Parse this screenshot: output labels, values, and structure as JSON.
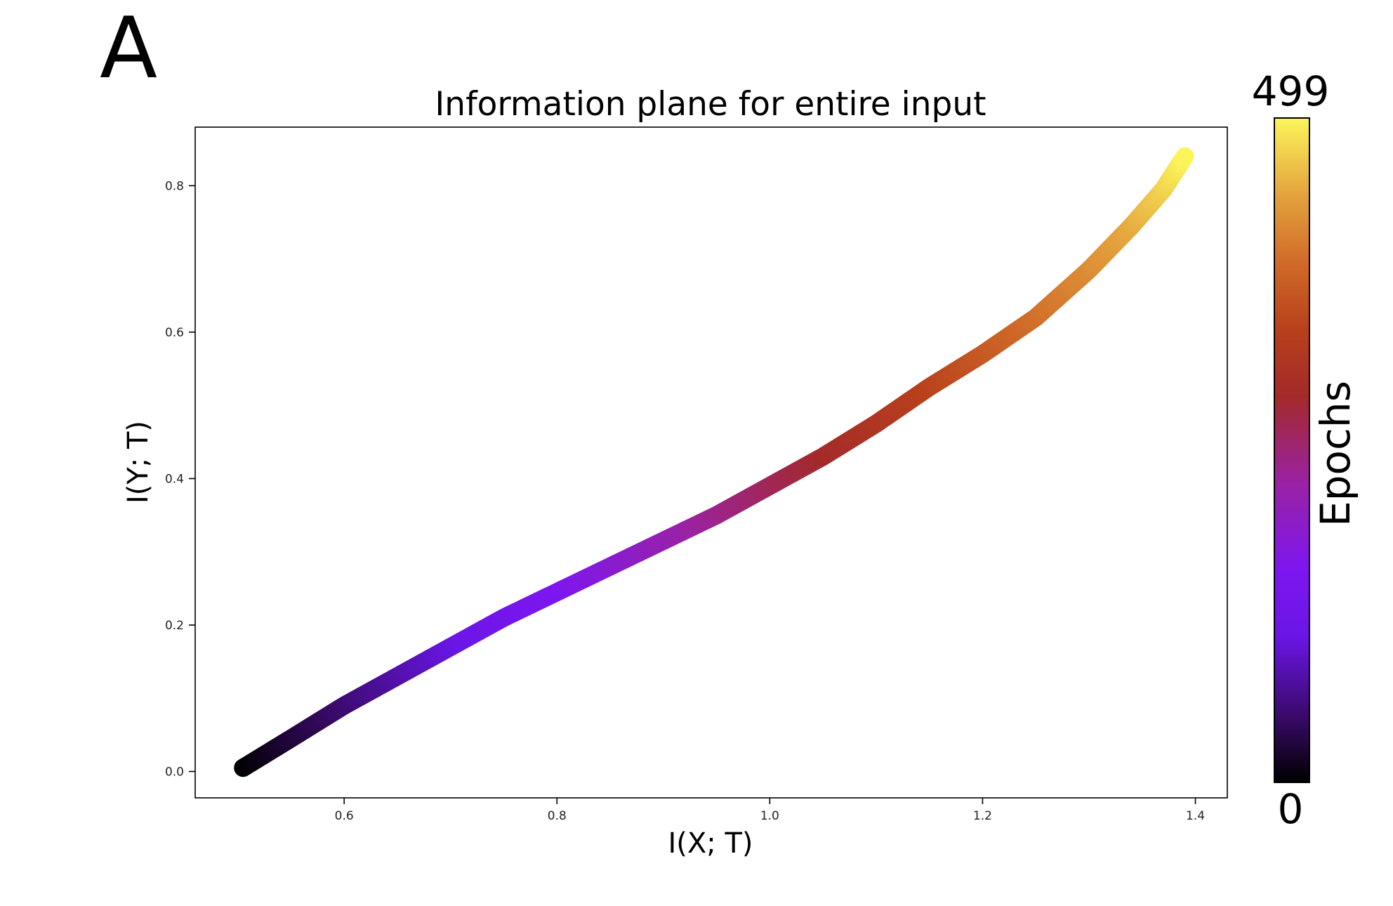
{
  "panel_label": "A",
  "chart_data": {
    "type": "scatter",
    "title": "Information plane for entire input",
    "xlabel": "I(X; T)",
    "ylabel": "I(Y; T)",
    "xlim": [
      0.46,
      1.43
    ],
    "ylim": [
      -0.036,
      0.88
    ],
    "xticks": [
      0.6,
      0.8,
      1.0,
      1.2,
      1.4
    ],
    "xtick_labels": [
      "0.6",
      "0.8",
      "1.0",
      "1.2",
      "1.4"
    ],
    "yticks": [
      0.0,
      0.2,
      0.4,
      0.6,
      0.8
    ],
    "ytick_labels": [
      "0.0",
      "0.2",
      "0.4",
      "0.6",
      "0.8"
    ],
    "grid": false,
    "colormap": "gnuplot",
    "colorbar": {
      "label": "Epochs",
      "min": 0,
      "max": 499,
      "min_label": "0",
      "max_label": "499"
    },
    "series": [
      {
        "color_by": "epoch",
        "epochs": [
          0,
          499
        ],
        "x": [
          0.505,
          0.55,
          0.6,
          0.65,
          0.7,
          0.75,
          0.8,
          0.85,
          0.9,
          0.95,
          1.0,
          1.05,
          1.1,
          1.15,
          1.2,
          1.25,
          1.3,
          1.34,
          1.37,
          1.39
        ],
        "y": [
          0.005,
          0.045,
          0.09,
          0.13,
          0.17,
          0.21,
          0.245,
          0.28,
          0.315,
          0.35,
          0.39,
          0.43,
          0.475,
          0.525,
          0.57,
          0.62,
          0.685,
          0.745,
          0.795,
          0.84
        ]
      }
    ]
  }
}
